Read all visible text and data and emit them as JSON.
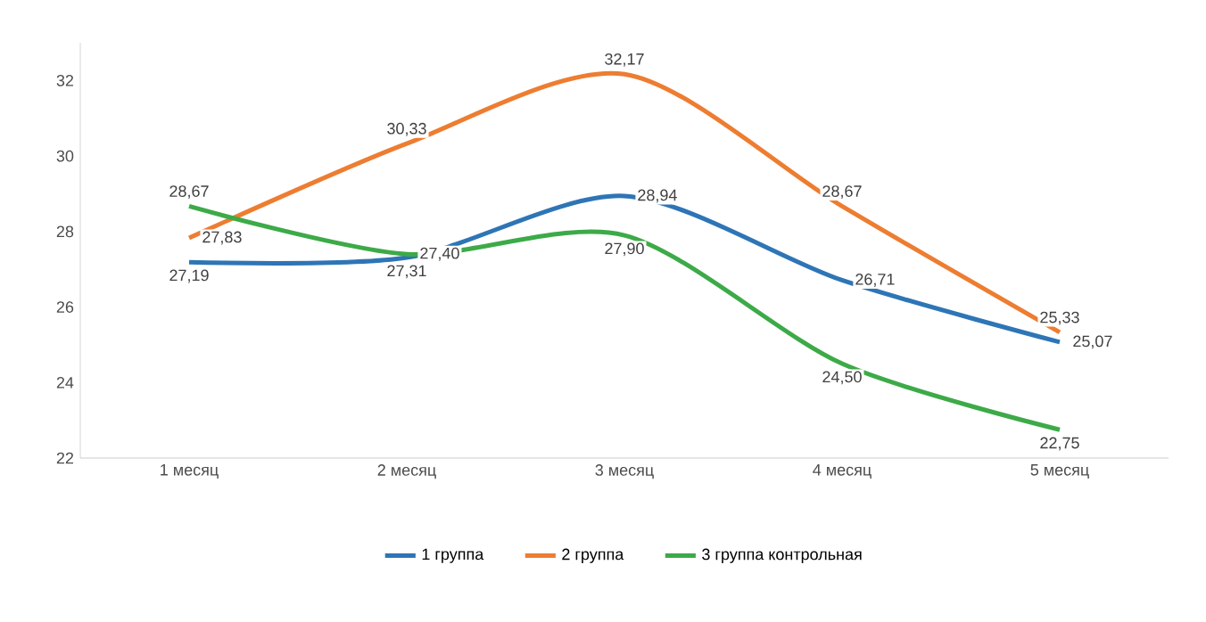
{
  "chart_data": {
    "type": "line",
    "categories": [
      "1 месяц",
      "2 месяц",
      "3 месяц",
      "4 месяц",
      "5 месяц"
    ],
    "series": [
      {
        "name": "1 группа",
        "color": "#2e75b6",
        "values": [
          27.19,
          27.31,
          28.94,
          26.71,
          25.07
        ],
        "value_labels": [
          "27,19",
          "27,31",
          "28,94",
          "26,71",
          "25,07"
        ]
      },
      {
        "name": "2 группа",
        "color": "#ed7d31",
        "values": [
          27.83,
          30.33,
          32.17,
          28.67,
          25.33
        ],
        "value_labels": [
          "27,83",
          "30,33",
          "32,17",
          "28,67",
          "25,33"
        ]
      },
      {
        "name": "3 группа контрольная",
        "color": "#3daa48",
        "values": [
          28.67,
          27.4,
          27.9,
          24.5,
          22.75
        ],
        "value_labels": [
          "28,67",
          "27,40",
          "27,90",
          "24,50",
          "22,75"
        ]
      }
    ],
    "ylim": [
      22,
      33
    ],
    "yticks": [
      22,
      24,
      26,
      28,
      30,
      32
    ],
    "legend": "bottom",
    "marker": "none",
    "line_style": "solid",
    "grid": false
  }
}
